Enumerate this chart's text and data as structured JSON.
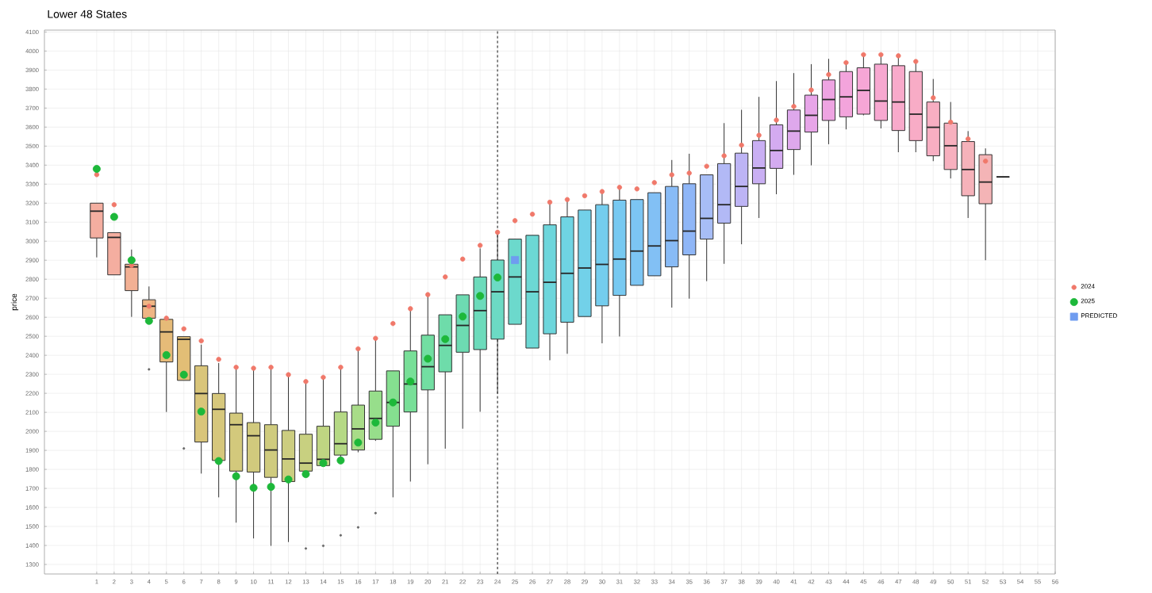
{
  "chart_data": {
    "type": "box",
    "title": "Lower 48 States",
    "ylabel": "price",
    "xlim": [
      -2,
      56
    ],
    "ylim": [
      1250,
      4110
    ],
    "xticks": [
      1,
      2,
      3,
      4,
      5,
      6,
      7,
      8,
      9,
      10,
      11,
      12,
      13,
      14,
      15,
      16,
      17,
      18,
      19,
      20,
      21,
      22,
      23,
      24,
      25,
      26,
      27,
      28,
      29,
      30,
      31,
      32,
      33,
      34,
      35,
      36,
      37,
      38,
      39,
      40,
      41,
      42,
      43,
      44,
      45,
      46,
      47,
      48,
      49,
      50,
      51,
      52,
      53,
      54,
      55,
      56
    ],
    "yticks": [
      1300,
      1400,
      1500,
      1600,
      1700,
      1800,
      1900,
      2000,
      2100,
      2200,
      2300,
      2400,
      2500,
      2600,
      2700,
      2800,
      2900,
      3000,
      3100,
      3200,
      3300,
      3400,
      3500,
      3600,
      3700,
      3800,
      3900,
      4000,
      4100
    ],
    "grid": true,
    "legend": "right",
    "ref_lines": [
      {
        "axis": "x",
        "value": 24,
        "color": "#555555",
        "line_style": "dashed"
      }
    ],
    "series": [
      {
        "x": [
          1,
          2,
          3,
          4,
          5,
          6,
          7,
          8,
          9,
          10,
          11,
          12,
          13,
          14,
          15,
          16,
          17,
          18,
          19,
          20,
          21,
          22,
          23,
          24,
          25,
          26,
          27,
          28,
          29,
          30,
          31,
          32,
          33,
          34,
          35,
          36,
          37,
          38,
          39,
          40,
          41,
          42,
          43,
          44,
          45,
          46,
          47,
          48,
          49,
          50,
          51,
          52,
          53
        ],
        "colors": [
          "#f4aea0",
          "#f4aea0",
          "#f2b094",
          "#efb584",
          "#e6bb78",
          "#e2be76",
          "#d9c57a",
          "#d6c77c",
          "#d3c97c",
          "#d1ca7d",
          "#cfcb7e",
          "#cccd80",
          "#c8d080",
          "#bfd582",
          "#b5d985",
          "#a8dc88",
          "#97de8b",
          "#85df90",
          "#78df98",
          "#72dea2",
          "#6edcaa",
          "#6ddbb2",
          "#6cdbbb",
          "#6cdac4",
          "#6cd9cc",
          "#6cd8d4",
          "#6dd6dc",
          "#6fd4e3",
          "#72d1e9",
          "#74cdee",
          "#77c9f1",
          "#7cc5f3",
          "#82c0f5",
          "#88bbf6",
          "#8fb6f7",
          "#a7bdf6",
          "#b2b9f6",
          "#bdb4f5",
          "#c9aff3",
          "#d4abf0",
          "#dea8ec",
          "#e7a5e8",
          "#eea4e2",
          "#f3a4dc",
          "#f6a6d6",
          "#f7a8d0",
          "#f8aacb",
          "#f8acc6",
          "#f8aec2",
          "#f7b0be",
          "#f6b2ba",
          "#f4b4b6",
          "#333333"
        ],
        "boxes": [
          {
            "low": 2915,
            "q1": 3017,
            "median": 3158,
            "q3": 3200,
            "high": 3200
          },
          {
            "low": 2823,
            "q1": 2823,
            "median": 3020,
            "q3": 3045,
            "high": 3045
          },
          {
            "low": 2602,
            "q1": 2740,
            "median": 2865,
            "q3": 2879,
            "high": 2956
          },
          {
            "low": 2595,
            "q1": 2595,
            "median": 2658,
            "q3": 2692,
            "high": 2762,
            "outliers": [
              2326
            ]
          },
          {
            "low": 2102,
            "q1": 2365,
            "median": 2523,
            "q3": 2589,
            "high": 2603
          },
          {
            "low": 2268,
            "q1": 2268,
            "median": 2484,
            "q3": 2498,
            "high": 2498,
            "outliers": [
              1910
            ]
          },
          {
            "low": 1778,
            "q1": 1944,
            "median": 2199,
            "q3": 2345,
            "high": 2456
          },
          {
            "low": 1653,
            "q1": 1847,
            "median": 2116,
            "q3": 2199,
            "high": 2359
          },
          {
            "low": 1520,
            "q1": 1791,
            "median": 2035,
            "q3": 2096,
            "high": 2337
          },
          {
            "low": 1437,
            "q1": 1786,
            "median": 1977,
            "q3": 2046,
            "high": 2332
          },
          {
            "low": 1398,
            "q1": 1758,
            "median": 1902,
            "q3": 2035,
            "high": 2337
          },
          {
            "low": 1418,
            "q1": 1736,
            "median": 1855,
            "q3": 2005,
            "high": 2298
          },
          {
            "low": 1780,
            "q1": 1791,
            "median": 1833,
            "q3": 1985,
            "high": 2262,
            "outliers": [
              1384
            ]
          },
          {
            "low": 1820,
            "q1": 1820,
            "median": 1853,
            "q3": 2027,
            "high": 2284,
            "outliers": [
              1398
            ]
          },
          {
            "low": 1860,
            "q1": 1875,
            "median": 1935,
            "q3": 2102,
            "high": 2337,
            "outliers": [
              1453
            ]
          },
          {
            "low": 1890,
            "q1": 1902,
            "median": 2013,
            "q3": 2138,
            "high": 2434,
            "outliers": [
              1495
            ]
          },
          {
            "low": 1950,
            "q1": 1958,
            "median": 2068,
            "q3": 2212,
            "high": 2489,
            "outliers": [
              1570
            ]
          },
          {
            "low": 1653,
            "q1": 2027,
            "median": 2152,
            "q3": 2318,
            "high": 2318
          },
          {
            "low": 1736,
            "q1": 2102,
            "median": 2249,
            "q3": 2423,
            "high": 2645
          },
          {
            "low": 1827,
            "q1": 2218,
            "median": 2340,
            "q3": 2506,
            "high": 2719
          },
          {
            "low": 1909,
            "q1": 2313,
            "median": 2452,
            "q3": 2613,
            "high": 2613
          },
          {
            "low": 2014,
            "q1": 2416,
            "median": 2557,
            "q3": 2718,
            "high": 2718
          },
          {
            "low": 2103,
            "q1": 2430,
            "median": 2635,
            "q3": 2812,
            "high": 2962
          },
          {
            "low": 2198,
            "q1": 2485,
            "median": 2734,
            "q3": 2901,
            "high": 3047
          },
          {
            "low": 2563,
            "q1": 2563,
            "median": 2812,
            "q3": 3011,
            "high": 3011
          },
          {
            "low": 2438,
            "q1": 2438,
            "median": 2734,
            "q3": 3031,
            "high": 3031
          },
          {
            "low": 2374,
            "q1": 2513,
            "median": 2784,
            "q3": 3086,
            "high": 3205
          },
          {
            "low": 2408,
            "q1": 2574,
            "median": 2831,
            "q3": 3128,
            "high": 3219
          },
          {
            "low": 2604,
            "q1": 2604,
            "median": 2859,
            "q3": 3164,
            "high": 3164
          },
          {
            "low": 2463,
            "q1": 2660,
            "median": 2878,
            "q3": 3192,
            "high": 3261
          },
          {
            "low": 2499,
            "q1": 2715,
            "median": 2906,
            "q3": 3216,
            "high": 3283
          },
          {
            "low": 2768,
            "q1": 2768,
            "median": 2948,
            "q3": 3219,
            "high": 3219
          },
          {
            "low": 2818,
            "q1": 2818,
            "median": 2975,
            "q3": 3255,
            "high": 3255
          },
          {
            "low": 2651,
            "q1": 2865,
            "median": 3003,
            "q3": 3288,
            "high": 3427
          },
          {
            "low": 2698,
            "q1": 2928,
            "median": 3053,
            "q3": 3302,
            "high": 3460
          },
          {
            "low": 2790,
            "q1": 3011,
            "median": 3120,
            "q3": 3349,
            "high": 3349
          },
          {
            "low": 2881,
            "q1": 3095,
            "median": 3192,
            "q3": 3408,
            "high": 3621
          },
          {
            "low": 2984,
            "q1": 3183,
            "median": 3288,
            "q3": 3463,
            "high": 3691
          },
          {
            "low": 3122,
            "q1": 3302,
            "median": 3385,
            "q3": 3529,
            "high": 3759
          },
          {
            "low": 3247,
            "q1": 3383,
            "median": 3477,
            "q3": 3612,
            "high": 3842
          },
          {
            "low": 3349,
            "q1": 3482,
            "median": 3579,
            "q3": 3690,
            "high": 3884
          },
          {
            "low": 3399,
            "q1": 3574,
            "median": 3662,
            "q3": 3768,
            "high": 3931
          },
          {
            "low": 3510,
            "q1": 3635,
            "median": 3745,
            "q3": 3848,
            "high": 3959
          },
          {
            "low": 3588,
            "q1": 3654,
            "median": 3759,
            "q3": 3892,
            "high": 3939
          },
          {
            "low": 3662,
            "q1": 3668,
            "median": 3793,
            "q3": 3912,
            "high": 3981
          },
          {
            "low": 3593,
            "q1": 3635,
            "median": 3737,
            "q3": 3931,
            "high": 3981
          },
          {
            "low": 3468,
            "q1": 3582,
            "median": 3732,
            "q3": 3923,
            "high": 3975
          },
          {
            "low": 3468,
            "q1": 3529,
            "median": 3668,
            "q3": 3892,
            "high": 3945
          },
          {
            "low": 3421,
            "q1": 3449,
            "median": 3599,
            "q3": 3732,
            "high": 3853
          },
          {
            "low": 3330,
            "q1": 3377,
            "median": 3502,
            "q3": 3621,
            "high": 3732
          },
          {
            "low": 3122,
            "q1": 3239,
            "median": 3377,
            "q3": 3524,
            "high": 3579
          },
          {
            "low": 2900,
            "q1": 3197,
            "median": 3311,
            "q3": 3455,
            "high": 3488
          },
          {
            "low": 3338,
            "q1": 3338,
            "median": 3338,
            "q3": 3338,
            "high": 3338
          }
        ]
      },
      {
        "type": "scatter",
        "name": "2024",
        "color": "#f0786a",
        "marker": "circle",
        "x": [
          1,
          2,
          3,
          4,
          5,
          6,
          7,
          8,
          9,
          10,
          11,
          12,
          13,
          14,
          15,
          16,
          17,
          18,
          19,
          20,
          21,
          22,
          23,
          24,
          25,
          26,
          27,
          28,
          29,
          30,
          31,
          32,
          33,
          34,
          35,
          36,
          37,
          38,
          39,
          40,
          41,
          42,
          43,
          44,
          45,
          46,
          47,
          48,
          49,
          50,
          51,
          52
        ],
        "values": [
          3350,
          3192,
          2873,
          2658,
          2595,
          2539,
          2476,
          2379,
          2337,
          2332,
          2337,
          2298,
          2262,
          2284,
          2337,
          2434,
          2489,
          2567,
          2645,
          2719,
          2812,
          2906,
          2978,
          3047,
          3108,
          3142,
          3205,
          3219,
          3239,
          3261,
          3283,
          3275,
          3308,
          3349,
          3358,
          3394,
          3449,
          3505,
          3557,
          3637,
          3709,
          3795,
          3876,
          3939,
          3981,
          3981,
          3975,
          3945,
          3754,
          3626,
          3538,
          3421
        ]
      },
      {
        "type": "scatter",
        "name": "2025",
        "color": "#1db83a",
        "marker": "circle",
        "x": [
          1,
          2,
          3,
          4,
          5,
          6,
          7,
          8,
          9,
          10,
          11,
          12,
          13,
          14,
          15,
          16,
          17,
          18,
          19,
          20,
          21,
          22,
          23,
          24
        ],
        "values": [
          3380,
          3128,
          2900,
          2581,
          2401,
          2298,
          2104,
          1844,
          1764,
          1703,
          1708,
          1747,
          1775,
          1833,
          1847,
          1941,
          2046,
          2152,
          2262,
          2382,
          2485,
          2604,
          2712,
          2809
        ]
      },
      {
        "type": "scatter",
        "name": "PREDICTED",
        "color": "#6f9cf0",
        "marker": "square",
        "x": [
          25
        ],
        "values": [
          2901
        ]
      }
    ]
  }
}
